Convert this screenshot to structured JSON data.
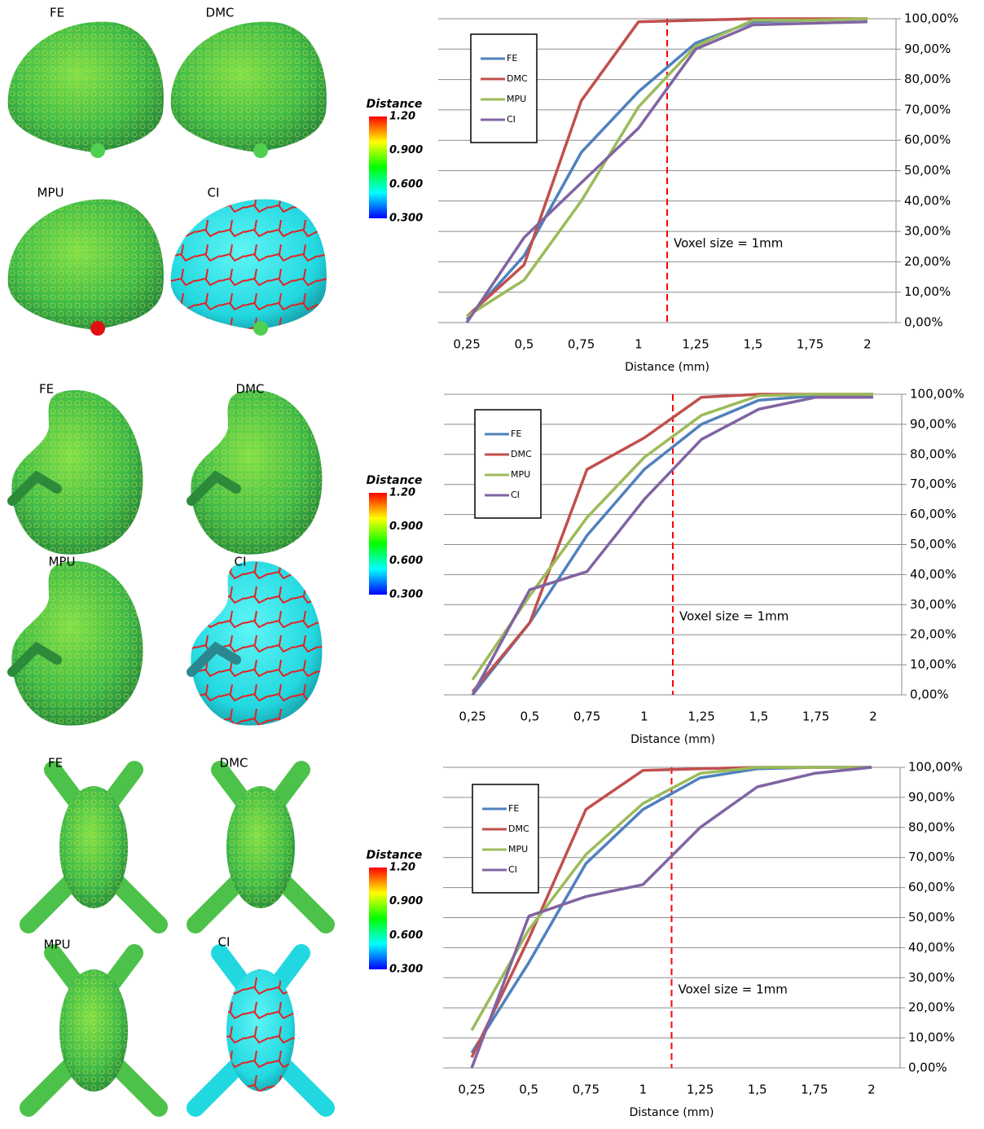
{
  "chart_data": [
    {
      "type": "line",
      "xlabel": "Distance (mm)",
      "x": [
        0.25,
        0.5,
        0.75,
        1,
        1.25,
        1.5,
        1.75,
        2
      ],
      "xlim": [
        0.125,
        2.125
      ],
      "xticks": [
        {
          "value": 0.25,
          "label": "0,25"
        },
        {
          "value": 0.5,
          "label": "0,5"
        },
        {
          "value": 0.75,
          "label": "0,75"
        },
        1,
        {
          "value": 1.25,
          "label": "1,25"
        },
        {
          "value": 1.5,
          "label": "1,5"
        },
        {
          "value": 1.75,
          "label": "1,75"
        },
        2
      ],
      "ylim": [
        0,
        100
      ],
      "yticks": [
        {
          "value": 0,
          "label": "0,00%"
        },
        {
          "value": 10,
          "label": "10,00%"
        },
        {
          "value": 20,
          "label": "20,00%"
        },
        {
          "value": 30,
          "label": "30,00%"
        },
        {
          "value": 40,
          "label": "40,00%"
        },
        {
          "value": 50,
          "label": "50,00%"
        },
        {
          "value": 60,
          "label": "60,00%"
        },
        {
          "value": 70,
          "label": "70,00%"
        },
        {
          "value": 80,
          "label": "80,00%"
        },
        {
          "value": 90,
          "label": "90,00%"
        },
        {
          "value": 100,
          "label": "100,00%"
        }
      ],
      "grid": true,
      "legend": "upper left",
      "series": [
        {
          "name": "FE",
          "color": "#4f81bd",
          "values": [
            1,
            22,
            56,
            76,
            92,
            99,
            99.5,
            100
          ]
        },
        {
          "name": "DMC",
          "color": "#c0504d",
          "values": [
            2,
            19,
            73,
            99,
            99.5,
            100,
            100,
            100
          ]
        },
        {
          "name": "MPU",
          "color": "#9bbb59",
          "values": [
            2,
            14,
            40,
            71,
            91,
            99.5,
            99.5,
            100
          ]
        },
        {
          "name": "CI",
          "color": "#8064a2",
          "values": [
            0,
            28,
            46,
            64,
            90,
            98,
            98.5,
            99
          ]
        }
      ],
      "vline": {
        "x": 1.125,
        "label": "Voxel size = 1mm",
        "color": "#ff0000"
      }
    },
    {
      "type": "line",
      "xlabel": "Distance (mm)",
      "x": [
        0.25,
        0.5,
        0.75,
        1,
        1.25,
        1.5,
        1.75,
        2
      ],
      "xlim": [
        0.125,
        2.125
      ],
      "xticks": [
        {
          "value": 0.25,
          "label": "0,25"
        },
        {
          "value": 0.5,
          "label": "0,5"
        },
        {
          "value": 0.75,
          "label": "0,75"
        },
        1,
        {
          "value": 1.25,
          "label": "1,25"
        },
        {
          "value": 1.5,
          "label": "1,5"
        },
        {
          "value": 1.75,
          "label": "1,75"
        },
        2
      ],
      "ylim": [
        0,
        100
      ],
      "yticks": [
        {
          "value": 0,
          "label": "0,00%"
        },
        {
          "value": 10,
          "label": "10,00%"
        },
        {
          "value": 20,
          "label": "20,00%"
        },
        {
          "value": 30,
          "label": "30,00%"
        },
        {
          "value": 40,
          "label": "40,00%"
        },
        {
          "value": 50,
          "label": "50,00%"
        },
        {
          "value": 60,
          "label": "60,00%"
        },
        {
          "value": 70,
          "label": "70,00%"
        },
        {
          "value": 80,
          "label": "80,00%"
        },
        {
          "value": 90,
          "label": "90,00%"
        },
        {
          "value": 100,
          "label": "100,00%"
        }
      ],
      "grid": true,
      "legend": "upper left",
      "series": [
        {
          "name": "FE",
          "color": "#4f81bd",
          "values": [
            0,
            24,
            53,
            75,
            90,
            98,
            99.5,
            100
          ]
        },
        {
          "name": "DMC",
          "color": "#c0504d",
          "values": [
            1,
            24,
            75,
            85.5,
            99,
            100,
            100,
            100
          ]
        },
        {
          "name": "MPU",
          "color": "#9bbb59",
          "values": [
            5,
            33,
            59,
            79,
            93,
            99.5,
            100,
            100
          ]
        },
        {
          "name": "CI",
          "color": "#8064a2",
          "values": [
            0,
            35,
            41,
            65,
            85,
            95,
            99,
            99
          ]
        }
      ],
      "vline": {
        "x": 1.125,
        "label": "Voxel size = 1mm",
        "color": "#ff0000"
      }
    },
    {
      "type": "line",
      "xlabel": "Distance (mm)",
      "x": [
        0.25,
        0.5,
        0.75,
        1,
        1.25,
        1.5,
        1.75,
        2
      ],
      "xlim": [
        0.125,
        2.125
      ],
      "xticks": [
        {
          "value": 0.25,
          "label": "0,25"
        },
        {
          "value": 0.5,
          "label": "0,5"
        },
        {
          "value": 0.75,
          "label": "0,75"
        },
        1,
        {
          "value": 1.25,
          "label": "1,25"
        },
        {
          "value": 1.5,
          "label": "1,5"
        },
        {
          "value": 1.75,
          "label": "1,75"
        },
        2
      ],
      "ylim": [
        0,
        100
      ],
      "yticks": [
        {
          "value": 0,
          "label": "0,00%"
        },
        {
          "value": 10,
          "label": "10,00%"
        },
        {
          "value": 20,
          "label": "20,00%"
        },
        {
          "value": 30,
          "label": "30,00%"
        },
        {
          "value": 40,
          "label": "40,00%"
        },
        {
          "value": 50,
          "label": "50,00%"
        },
        {
          "value": 60,
          "label": "60,00%"
        },
        {
          "value": 70,
          "label": "70,00%"
        },
        {
          "value": 80,
          "label": "80,00%"
        },
        {
          "value": 90,
          "label": "90,00%"
        },
        {
          "value": 100,
          "label": "100,00%"
        }
      ],
      "grid": true,
      "legend": "upper left",
      "series": [
        {
          "name": "FE",
          "color": "#4f81bd",
          "values": [
            5,
            35,
            68,
            86,
            96.5,
            99.5,
            100,
            100
          ]
        },
        {
          "name": "DMC",
          "color": "#c0504d",
          "values": [
            3.5,
            43,
            86,
            99,
            99.5,
            100,
            100,
            100
          ]
        },
        {
          "name": "MPU",
          "color": "#9bbb59",
          "values": [
            12.5,
            46,
            71,
            88,
            98,
            100,
            100,
            100
          ]
        },
        {
          "name": "CI",
          "color": "#8064a2",
          "values": [
            0,
            50.5,
            57,
            61,
            80,
            93.5,
            98,
            100
          ]
        }
      ],
      "vline": {
        "x": 1.125,
        "label": "Voxel size = 1mm",
        "color": "#ff0000"
      }
    }
  ],
  "renders": [
    {
      "methods": [
        "FE",
        "DMC",
        "MPU",
        "CI"
      ],
      "colorbar": {
        "title": "Distance",
        "ticks": [
          "1.20",
          "0.900",
          "0.600",
          "0.300"
        ]
      }
    },
    {
      "methods": [
        "FE",
        "DMC",
        "MPU",
        "CI"
      ],
      "colorbar": {
        "title": "Distance",
        "ticks": [
          "1.20",
          "0.900",
          "0.600",
          "0.300"
        ]
      }
    },
    {
      "methods": [
        "FE",
        "DMC",
        "MPU",
        "CI"
      ],
      "colorbar": {
        "title": "Distance",
        "ticks": [
          "1.20",
          "0.900",
          "0.600",
          "0.300"
        ]
      }
    }
  ]
}
